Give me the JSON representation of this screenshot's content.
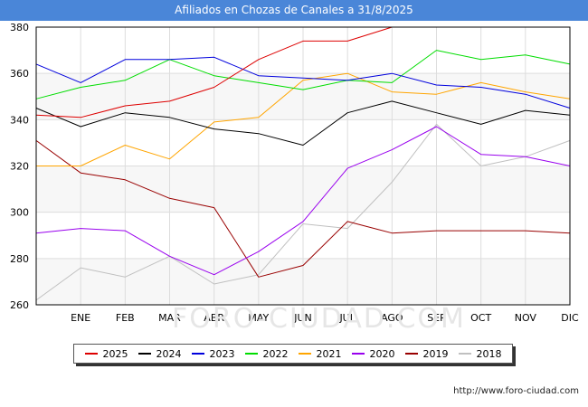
{
  "title": "Afiliados en Chozas de Canales a 31/8/2025",
  "source": "http://www.foro-ciudad.com",
  "watermark": "FORO-CIUDAD.COM",
  "chart_data": {
    "type": "line",
    "title": "Afiliados en Chozas de Canales a 31/8/2025",
    "categories": [
      "DIC_PREV",
      "ENE",
      "FEB",
      "MAR",
      "ABR",
      "MAY",
      "JUN",
      "JUL",
      "AGO",
      "SEP",
      "OCT",
      "NOV",
      "DIC"
    ],
    "tick_labels": [
      "",
      "ENE",
      "FEB",
      "MAR",
      "ABR",
      "MAY",
      "JUN",
      "JUL",
      "AGO",
      "SEP",
      "OCT",
      "NOV",
      "DIC"
    ],
    "ylim": [
      260,
      380
    ],
    "yticks": [
      260,
      280,
      300,
      320,
      340,
      360,
      380
    ],
    "grid": true,
    "legend_position": "bottom",
    "series": [
      {
        "name": "2025",
        "color": "#dd0000",
        "values": [
          342,
          341,
          346,
          348,
          354,
          366,
          374,
          374,
          380,
          null,
          null,
          null,
          null
        ]
      },
      {
        "name": "2024",
        "color": "#000000",
        "values": [
          345,
          337,
          343,
          341,
          336,
          334,
          329,
          343,
          348,
          343,
          338,
          344,
          342
        ]
      },
      {
        "name": "2023",
        "color": "#0000dd",
        "values": [
          364,
          356,
          366,
          366,
          367,
          359,
          358,
          357,
          360,
          355,
          354,
          351,
          345
        ]
      },
      {
        "name": "2022",
        "color": "#00dd00",
        "values": [
          349,
          354,
          357,
          366,
          359,
          356,
          353,
          357,
          356,
          370,
          366,
          368,
          364
        ]
      },
      {
        "name": "2021",
        "color": "#ffa500",
        "values": [
          320,
          320,
          329,
          323,
          339,
          341,
          357,
          360,
          352,
          351,
          356,
          352,
          349
        ]
      },
      {
        "name": "2020",
        "color": "#9900ee",
        "values": [
          291,
          293,
          292,
          281,
          273,
          283,
          296,
          319,
          327,
          337,
          325,
          324,
          320
        ]
      },
      {
        "name": "2019",
        "color": "#990000",
        "values": [
          331,
          317,
          314,
          306,
          302,
          272,
          277,
          296,
          291,
          292,
          292,
          292,
          291
        ]
      },
      {
        "name": "2018",
        "color": "#c0c0c0",
        "values": [
          262,
          276,
          272,
          281,
          269,
          273,
          295,
          293,
          313,
          338,
          320,
          324,
          331
        ]
      }
    ]
  }
}
